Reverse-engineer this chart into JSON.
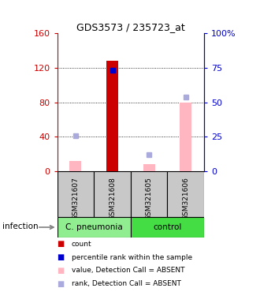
{
  "title": "GDS3573 / 235723_at",
  "samples": [
    "GSM321607",
    "GSM321608",
    "GSM321605",
    "GSM321606"
  ],
  "ylim_left": [
    0,
    160
  ],
  "ylim_right": [
    0,
    100
  ],
  "yticks_left": [
    0,
    40,
    80,
    120,
    160
  ],
  "ytick_labels_left": [
    "0",
    "40",
    "80",
    "120",
    "160"
  ],
  "yticks_right": [
    0,
    25,
    50,
    75,
    100
  ],
  "ytick_labels_right": [
    "0",
    "25",
    "50",
    "75",
    "100%"
  ],
  "bar_values_red": [
    null,
    128,
    null,
    null
  ],
  "bar_color_red": "#CC0000",
  "bar_values_pink": [
    12,
    null,
    8,
    80
  ],
  "bar_color_pink": "#FFB6C1",
  "dot_blue_right": [
    null,
    73,
    null,
    null
  ],
  "dot_blue_color": "#0000CC",
  "dot_lightblue_right": [
    26,
    null,
    12,
    54
  ],
  "dot_lightblue_color": "#AAAADD",
  "left_tick_color": "#CC0000",
  "right_tick_color": "#0000CC",
  "group_labels": [
    "C. pneumonia",
    "control"
  ],
  "group_colors": [
    "#90EE90",
    "#44DD44"
  ],
  "sample_box_color": "#C8C8C8",
  "infection_label": "infection",
  "legend_items": [
    {
      "color": "#CC0000",
      "label": "count"
    },
    {
      "color": "#0000CC",
      "label": "percentile rank within the sample"
    },
    {
      "color": "#FFB6C1",
      "label": "value, Detection Call = ABSENT"
    },
    {
      "color": "#AAAADD",
      "label": "rank, Detection Call = ABSENT"
    }
  ]
}
